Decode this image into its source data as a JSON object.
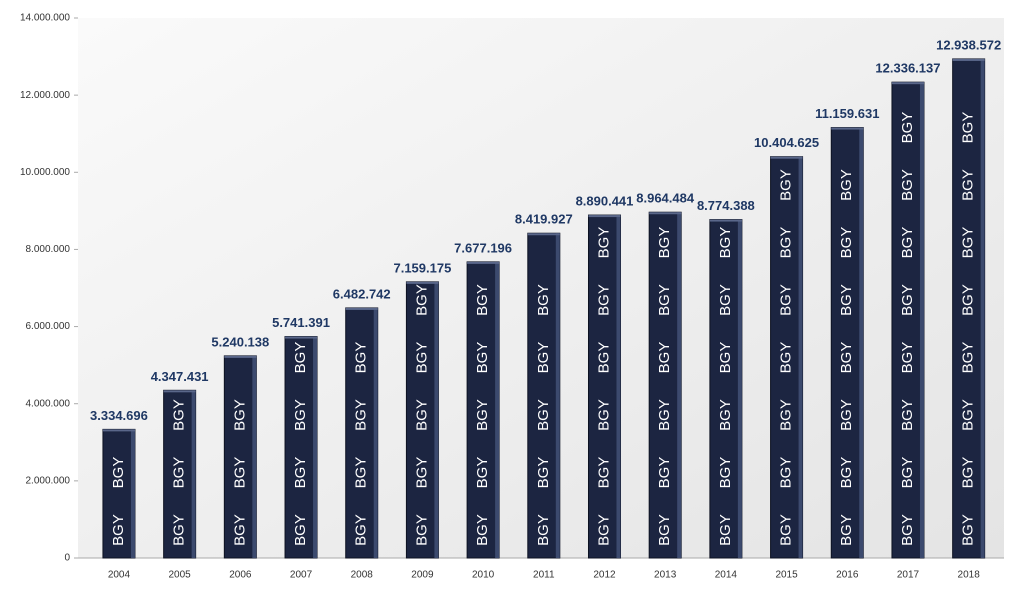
{
  "chart_data": {
    "type": "bar",
    "categories": [
      "2004",
      "2005",
      "2006",
      "2007",
      "2008",
      "2009",
      "2010",
      "2011",
      "2012",
      "2013",
      "2014",
      "2015",
      "2016",
      "2017",
      "2018"
    ],
    "values": [
      3334696,
      4347431,
      5240138,
      5741391,
      6482742,
      7159175,
      7677196,
      8419927,
      8890441,
      8964484,
      8774388,
      10404625,
      11159631,
      12336137,
      12938572
    ],
    "value_labels": [
      "3.334.696",
      "4.347.431",
      "5.240.138",
      "5.741.391",
      "6.482.742",
      "7.159.175",
      "7.677.196",
      "8.419.927",
      "8.890.441",
      "8.964.484",
      "8.774.388",
      "10.404.625",
      "11.159.631",
      "12.336.137",
      "12.938.572"
    ],
    "bar_text": "BGY",
    "color": "#1c2541",
    "label_color": "#1f3864",
    "ylim": [
      0,
      14000000
    ],
    "yticks": [
      0,
      {
        "value": 2000000,
        "label": "2.000.000"
      },
      {
        "value": 4000000,
        "label": "4.000.000"
      },
      {
        "value": 6000000,
        "label": "6.000.000"
      },
      {
        "value": 8000000,
        "label": "8.000.000"
      },
      {
        "value": 10000000,
        "label": "10.000.000"
      },
      {
        "value": 12000000,
        "label": "12.000.000"
      },
      {
        "value": 14000000,
        "label": "14.000.000"
      }
    ],
    "grid": false
  }
}
